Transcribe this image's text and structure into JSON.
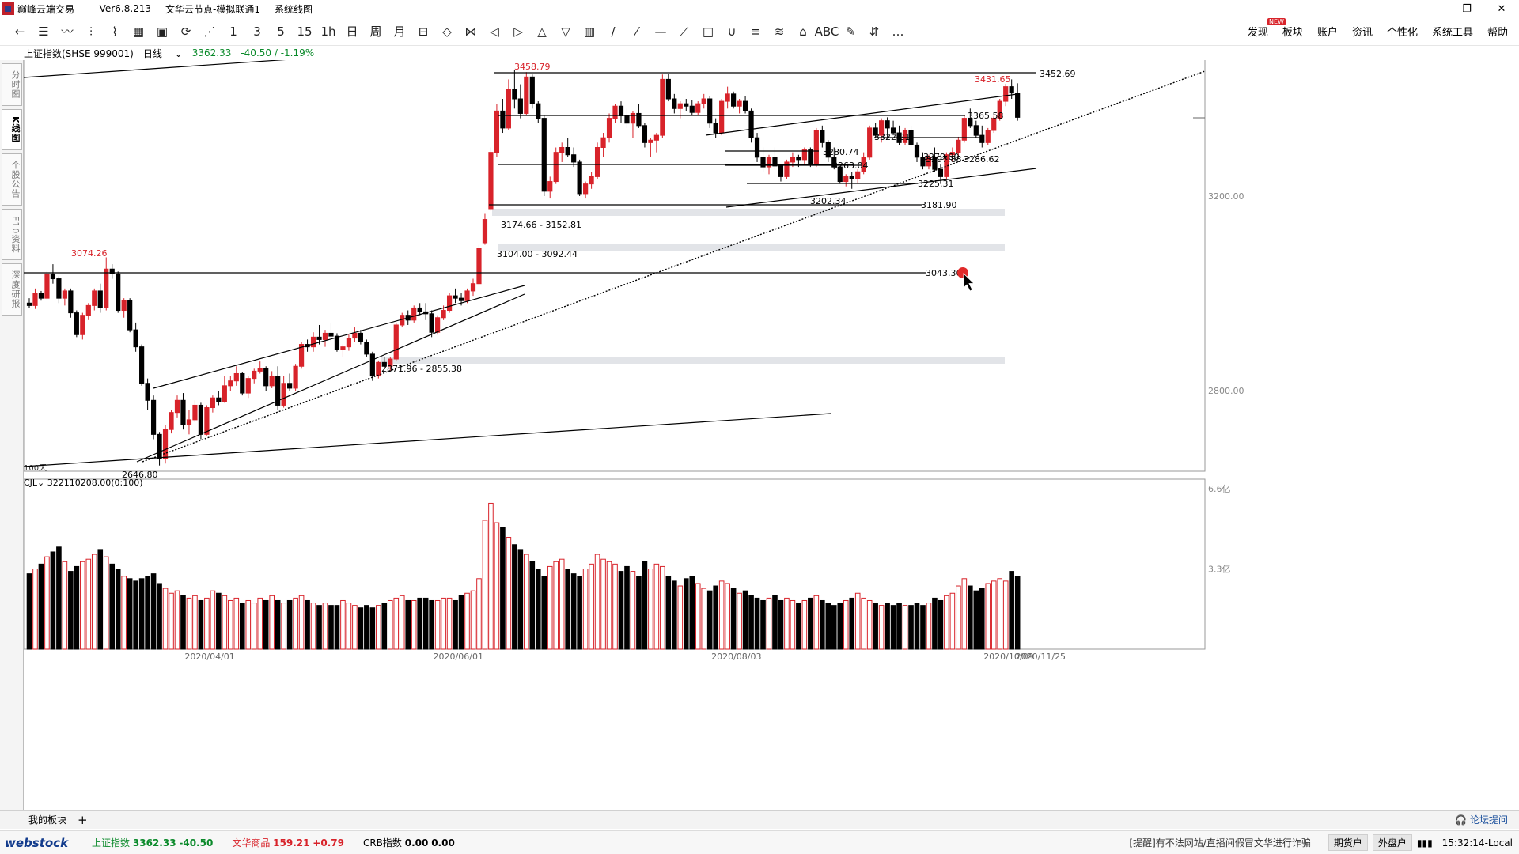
{
  "titlebar": {
    "app_name": "巅峰云端交易",
    "version": " – Ver6.8.213",
    "node": "文华云节点-模拟联通1",
    "tab": "系统线图",
    "buttons": [
      "–",
      "❐",
      "✕"
    ]
  },
  "toolbar": {
    "tools": [
      "←",
      "☰",
      "〰",
      "⫶",
      "⌇",
      "▦",
      "▣",
      "⟳",
      "⋰",
      "1",
      "3",
      "5",
      "15",
      "1h",
      "日",
      "周",
      "月",
      "⊟",
      "◇",
      "⋈",
      "◁",
      "▷",
      "△",
      "▽",
      "▥",
      "/",
      "⁄",
      "—",
      "⟋",
      "□",
      "∪",
      "≡",
      "≋",
      "⌂",
      "ABC",
      "✎",
      "⇵",
      "…"
    ],
    "menus": [
      {
        "label": "发现",
        "badge": "NEW"
      },
      {
        "label": "板块"
      },
      {
        "label": "账户"
      },
      {
        "label": "资讯"
      },
      {
        "label": "个性化"
      },
      {
        "label": "系统工具"
      },
      {
        "label": "帮助"
      }
    ]
  },
  "info": {
    "symbol": "上证指数(SHSE 999001)",
    "period": "日线",
    "price": "3362.33",
    "change": "-40.50 / -1.19%"
  },
  "left_tabs": [
    {
      "label": "分时图",
      "active": false
    },
    {
      "label": "K线图",
      "active": true
    },
    {
      "label": "个股公告",
      "active": false
    },
    {
      "label": "F10资料",
      "active": false
    },
    {
      "label": "深度研报",
      "active": false
    }
  ],
  "chart_data": {
    "type": "candlestick",
    "symbol": "上证指数",
    "y_axis_labels": [
      "3200.00",
      "2800.00"
    ],
    "ylim": [
      2600,
      3500
    ],
    "x_axis_labels": [
      "2020/04/01",
      "2020/06/01",
      "2020/08/03",
      "2020/10/09",
      "2020/11/25"
    ],
    "period_label": "100天",
    "price_labels": [
      {
        "text": "3074.26",
        "color": "#d8232a"
      },
      {
        "text": "2646.80",
        "color": "#000000"
      },
      {
        "text": "3458.79",
        "color": "#d8232a"
      },
      {
        "text": "3431.65",
        "color": "#d8232a"
      },
      {
        "text": "3452.69",
        "color": "#000000"
      },
      {
        "text": "3365.58",
        "color": "#000000"
      },
      {
        "text": "3322.21",
        "color": "#000000"
      },
      {
        "text": "3280.74",
        "color": "#000000"
      },
      {
        "text": "3263.04",
        "color": "#000000"
      },
      {
        "text": "3279.80",
        "color": "#000000"
      },
      {
        "text": "3297.88",
        "color": "#000000"
      },
      {
        "text": "3286.62",
        "color": "#000000"
      },
      {
        "text": "3225.31",
        "color": "#000000"
      },
      {
        "text": "3202.34",
        "color": "#000000"
      },
      {
        "text": "3181.90",
        "color": "#000000"
      },
      {
        "text": "3043.36",
        "color": "#000000"
      }
    ],
    "gap_labels": [
      "3174.66 - 3152.81",
      "3104.00 - 3092.44",
      "2871.96 - 2855.38"
    ],
    "volume": {
      "indicator": "CJL",
      "value_text": "322110208.00(0:100)",
      "y_labels": [
        "6.6亿",
        "3.3亿"
      ]
    },
    "candles": [
      [
        2980,
        2990,
        2970,
        2975
      ],
      [
        2975,
        3010,
        2968,
        3000
      ],
      [
        3000,
        3005,
        2985,
        2990
      ],
      [
        2990,
        3045,
        2988,
        3040
      ],
      [
        3040,
        3060,
        3020,
        3030
      ],
      [
        3030,
        3035,
        2980,
        2990
      ],
      [
        2990,
        3010,
        2975,
        3005
      ],
      [
        3005,
        3010,
        2950,
        2960
      ],
      [
        2960,
        2965,
        2910,
        2915
      ],
      [
        2915,
        2960,
        2905,
        2955
      ],
      [
        2955,
        2980,
        2945,
        2975
      ],
      [
        2975,
        3010,
        2965,
        3005
      ],
      [
        3005,
        3020,
        2960,
        2970
      ],
      [
        2970,
        3074,
        2965,
        3050
      ],
      [
        3050,
        3060,
        3030,
        3040
      ],
      [
        3040,
        3045,
        2960,
        2965
      ],
      [
        2965,
        2990,
        2950,
        2985
      ],
      [
        2985,
        2990,
        2920,
        2925
      ],
      [
        2925,
        2940,
        2880,
        2890
      ],
      [
        2890,
        2895,
        2810,
        2815
      ],
      [
        2815,
        2825,
        2760,
        2780
      ],
      [
        2780,
        2790,
        2700,
        2710
      ],
      [
        2710,
        2715,
        2646,
        2660
      ],
      [
        2660,
        2730,
        2650,
        2720
      ],
      [
        2720,
        2760,
        2712,
        2755
      ],
      [
        2755,
        2790,
        2745,
        2780
      ],
      [
        2780,
        2795,
        2720,
        2730
      ],
      [
        2730,
        2760,
        2710,
        2740
      ],
      [
        2740,
        2780,
        2735,
        2770
      ],
      [
        2770,
        2775,
        2700,
        2710
      ],
      [
        2710,
        2770,
        2708,
        2765
      ],
      [
        2765,
        2790,
        2755,
        2785
      ],
      [
        2785,
        2800,
        2770,
        2778
      ],
      [
        2778,
        2830,
        2775,
        2810
      ],
      [
        2810,
        2830,
        2800,
        2820
      ],
      [
        2820,
        2850,
        2810,
        2835
      ],
      [
        2835,
        2838,
        2790,
        2795
      ],
      [
        2795,
        2830,
        2785,
        2825
      ],
      [
        2825,
        2845,
        2815,
        2840
      ],
      [
        2840,
        2860,
        2835,
        2845
      ],
      [
        2845,
        2850,
        2800,
        2810
      ],
      [
        2810,
        2840,
        2805,
        2830
      ],
      [
        2830,
        2850,
        2760,
        2770
      ],
      [
        2770,
        2830,
        2765,
        2815
      ],
      [
        2815,
        2835,
        2800,
        2805
      ],
      [
        2805,
        2855,
        2800,
        2850
      ],
      [
        2850,
        2900,
        2845,
        2895
      ],
      [
        2895,
        2905,
        2880,
        2890
      ],
      [
        2890,
        2920,
        2880,
        2910
      ],
      [
        2910,
        2935,
        2895,
        2905
      ],
      [
        2905,
        2925,
        2890,
        2918
      ],
      [
        2918,
        2940,
        2900,
        2912
      ],
      [
        2912,
        2918,
        2880,
        2885
      ],
      [
        2885,
        2895,
        2870,
        2890
      ],
      [
        2890,
        2915,
        2882,
        2908
      ],
      [
        2908,
        2930,
        2900,
        2918
      ],
      [
        2918,
        2925,
        2895,
        2900
      ],
      [
        2900,
        2905,
        2870,
        2875
      ],
      [
        2875,
        2880,
        2820,
        2830
      ],
      [
        2830,
        2862,
        2825,
        2858
      ],
      [
        2858,
        2870,
        2845,
        2850
      ],
      [
        2850,
        2870,
        2840,
        2865
      ],
      [
        2865,
        2940,
        2860,
        2935
      ],
      [
        2935,
        2960,
        2930,
        2955
      ],
      [
        2955,
        2965,
        2935,
        2945
      ],
      [
        2945,
        2975,
        2940,
        2970
      ],
      [
        2970,
        2980,
        2955,
        2962
      ],
      [
        2962,
        2980,
        2945,
        2958
      ],
      [
        2958,
        2965,
        2910,
        2920
      ],
      [
        2920,
        2955,
        2915,
        2950
      ],
      [
        2950,
        2975,
        2945,
        2965
      ],
      [
        2965,
        3000,
        2960,
        2995
      ],
      [
        2995,
        3010,
        2980,
        2990
      ],
      [
        2990,
        3000,
        2975,
        2985
      ],
      [
        2985,
        3010,
        2980,
        3005
      ],
      [
        3005,
        3030,
        2995,
        3020
      ],
      [
        3020,
        3100,
        3015,
        3092
      ],
      [
        3104,
        3165,
        3100,
        3152
      ],
      [
        3174,
        3300,
        3170,
        3290
      ],
      [
        3290,
        3390,
        3280,
        3375
      ],
      [
        3375,
        3400,
        3330,
        3340
      ],
      [
        3340,
        3440,
        3335,
        3420
      ],
      [
        3420,
        3459,
        3380,
        3400
      ],
      [
        3400,
        3430,
        3360,
        3370
      ],
      [
        3370,
        3455,
        3365,
        3445
      ],
      [
        3445,
        3450,
        3380,
        3390
      ],
      [
        3390,
        3395,
        3350,
        3360
      ],
      [
        3360,
        3365,
        3200,
        3210
      ],
      [
        3210,
        3240,
        3195,
        3230
      ],
      [
        3230,
        3300,
        3225,
        3290
      ],
      [
        3290,
        3310,
        3270,
        3300
      ],
      [
        3300,
        3320,
        3280,
        3285
      ],
      [
        3285,
        3300,
        3260,
        3270
      ],
      [
        3270,
        3275,
        3200,
        3205
      ],
      [
        3205,
        3230,
        3195,
        3225
      ],
      [
        3225,
        3250,
        3215,
        3240
      ],
      [
        3240,
        3310,
        3235,
        3300
      ],
      [
        3300,
        3330,
        3280,
        3320
      ],
      [
        3320,
        3370,
        3310,
        3360
      ],
      [
        3360,
        3390,
        3350,
        3385
      ],
      [
        3385,
        3395,
        3350,
        3365
      ],
      [
        3365,
        3380,
        3340,
        3350
      ],
      [
        3350,
        3375,
        3320,
        3370
      ],
      [
        3370,
        3390,
        3340,
        3345
      ],
      [
        3345,
        3350,
        3300,
        3310
      ],
      [
        3310,
        3320,
        3280,
        3315
      ],
      [
        3315,
        3330,
        3290,
        3325
      ],
      [
        3325,
        3450,
        3320,
        3440
      ],
      [
        3440,
        3452,
        3395,
        3400
      ],
      [
        3400,
        3410,
        3370,
        3380
      ],
      [
        3380,
        3395,
        3360,
        3390
      ],
      [
        3390,
        3400,
        3375,
        3385
      ],
      [
        3385,
        3398,
        3365,
        3372
      ],
      [
        3372,
        3395,
        3365,
        3390
      ],
      [
        3390,
        3410,
        3380,
        3400
      ],
      [
        3400,
        3405,
        3340,
        3350
      ],
      [
        3350,
        3360,
        3320,
        3330
      ],
      [
        3330,
        3400,
        3325,
        3395
      ],
      [
        3395,
        3425,
        3380,
        3410
      ],
      [
        3410,
        3415,
        3380,
        3385
      ],
      [
        3385,
        3400,
        3370,
        3395
      ],
      [
        3395,
        3405,
        3370,
        3375
      ],
      [
        3375,
        3380,
        3310,
        3320
      ],
      [
        3320,
        3330,
        3270,
        3280
      ],
      [
        3280,
        3300,
        3250,
        3260
      ],
      [
        3260,
        3285,
        3245,
        3280
      ],
      [
        3280,
        3300,
        3255,
        3262
      ],
      [
        3262,
        3265,
        3230,
        3240
      ],
      [
        3240,
        3275,
        3235,
        3270
      ],
      [
        3270,
        3290,
        3260,
        3280
      ],
      [
        3280,
        3285,
        3260,
        3275
      ],
      [
        3275,
        3300,
        3265,
        3295
      ],
      [
        3295,
        3300,
        3260,
        3265
      ],
      [
        3265,
        3340,
        3260,
        3335
      ],
      [
        3335,
        3345,
        3300,
        3310
      ],
      [
        3310,
        3315,
        3270,
        3280
      ],
      [
        3280,
        3300,
        3255,
        3260
      ],
      [
        3260,
        3262,
        3225,
        3230
      ],
      [
        3230,
        3245,
        3220,
        3240
      ],
      [
        3240,
        3250,
        3215,
        3235
      ],
      [
        3235,
        3255,
        3225,
        3250
      ],
      [
        3250,
        3290,
        3245,
        3280
      ],
      [
        3280,
        3345,
        3275,
        3340
      ],
      [
        3340,
        3350,
        3320,
        3325
      ],
      [
        3325,
        3360,
        3310,
        3355
      ],
      [
        3355,
        3362,
        3320,
        3340
      ],
      [
        3340,
        3355,
        3325,
        3330
      ],
      [
        3330,
        3345,
        3305,
        3310
      ],
      [
        3310,
        3340,
        3305,
        3335
      ],
      [
        3335,
        3345,
        3300,
        3305
      ],
      [
        3305,
        3310,
        3270,
        3280
      ],
      [
        3280,
        3290,
        3255,
        3262
      ],
      [
        3262,
        3285,
        3255,
        3280
      ],
      [
        3280,
        3300,
        3250,
        3255
      ],
      [
        3255,
        3265,
        3225,
        3240
      ],
      [
        3240,
        3290,
        3235,
        3285
      ],
      [
        3285,
        3300,
        3270,
        3290
      ],
      [
        3290,
        3322,
        3280,
        3315
      ],
      [
        3315,
        3365,
        3310,
        3360
      ],
      [
        3360,
        3380,
        3340,
        3345
      ],
      [
        3345,
        3355,
        3320,
        3325
      ],
      [
        3325,
        3345,
        3300,
        3310
      ],
      [
        3310,
        3340,
        3305,
        3335
      ],
      [
        3335,
        3365,
        3330,
        3360
      ],
      [
        3360,
        3400,
        3355,
        3395
      ],
      [
        3395,
        3431,
        3385,
        3425
      ],
      [
        3425,
        3440,
        3400,
        3412
      ],
      [
        3412,
        3432,
        3355,
        3362
      ]
    ],
    "volumes": [
      3.1,
      3.3,
      3.5,
      3.8,
      4.0,
      4.2,
      3.6,
      3.2,
      3.4,
      3.6,
      3.7,
      3.9,
      4.1,
      3.8,
      3.5,
      3.3,
      3.0,
      2.9,
      2.8,
      2.9,
      3.0,
      3.1,
      2.7,
      2.5,
      2.3,
      2.4,
      2.2,
      2.1,
      2.2,
      2.0,
      2.1,
      2.4,
      2.3,
      2.2,
      2.0,
      2.1,
      1.9,
      2.0,
      1.9,
      2.1,
      2.0,
      2.2,
      2.0,
      1.9,
      2.0,
      2.1,
      2.2,
      2.0,
      1.9,
      1.8,
      1.9,
      1.8,
      1.8,
      2.0,
      1.9,
      1.8,
      1.7,
      1.8,
      1.7,
      1.8,
      1.9,
      2.0,
      2.1,
      2.2,
      2.0,
      2.0,
      2.1,
      2.1,
      2.0,
      2.0,
      2.1,
      2.1,
      2.0,
      2.2,
      2.3,
      2.4,
      2.9,
      5.3,
      6.0,
      5.2,
      5.0,
      4.6,
      4.3,
      4.1,
      3.9,
      3.6,
      3.3,
      3.0,
      3.4,
      3.6,
      3.7,
      3.3,
      3.1,
      3.0,
      3.3,
      3.5,
      3.9,
      3.7,
      3.6,
      3.5,
      3.2,
      3.4,
      3.2,
      3.0,
      3.6,
      3.3,
      3.5,
      3.4,
      3.0,
      2.8,
      2.6,
      2.9,
      3.0,
      2.7,
      2.5,
      2.4,
      2.6,
      2.8,
      2.7,
      2.5,
      2.3,
      2.4,
      2.2,
      2.1,
      2.0,
      2.1,
      2.2,
      2.0,
      2.1,
      2.0,
      1.9,
      2.0,
      2.1,
      2.2,
      2.0,
      1.9,
      1.8,
      1.9,
      2.0,
      2.1,
      2.3,
      2.1,
      2.0,
      1.9,
      1.8,
      1.9,
      1.8,
      1.9,
      1.8,
      1.8,
      1.9,
      1.8,
      1.9,
      2.1,
      2.0,
      2.2,
      2.3,
      2.6,
      2.9,
      2.6,
      2.4,
      2.5,
      2.7,
      2.8,
      2.9,
      2.8,
      3.2,
      3.0
    ]
  },
  "bottom_tabs": {
    "tab": "我的板块",
    "plus": "+",
    "forum": "论坛提问"
  },
  "status": {
    "brand": "webstock",
    "index_label": "上证指数",
    "index_value": "3362.33",
    "index_change": "-40.50",
    "commodity_label": "文华商品",
    "commodity_value": "159.21",
    "commodity_change": "+0.79",
    "crb_label": "CRB指数",
    "crb_value": "0.00",
    "crb_change": "0.00",
    "notice": "[提醒]有不法网站/直播间假冒文华进行诈骗",
    "btn_futures": "期货户",
    "btn_external": "外盘户",
    "clock": "15:32:14-Local"
  },
  "colors": {
    "up": "#d8232a",
    "down": "#000000",
    "accent": "#1a4f9c"
  }
}
